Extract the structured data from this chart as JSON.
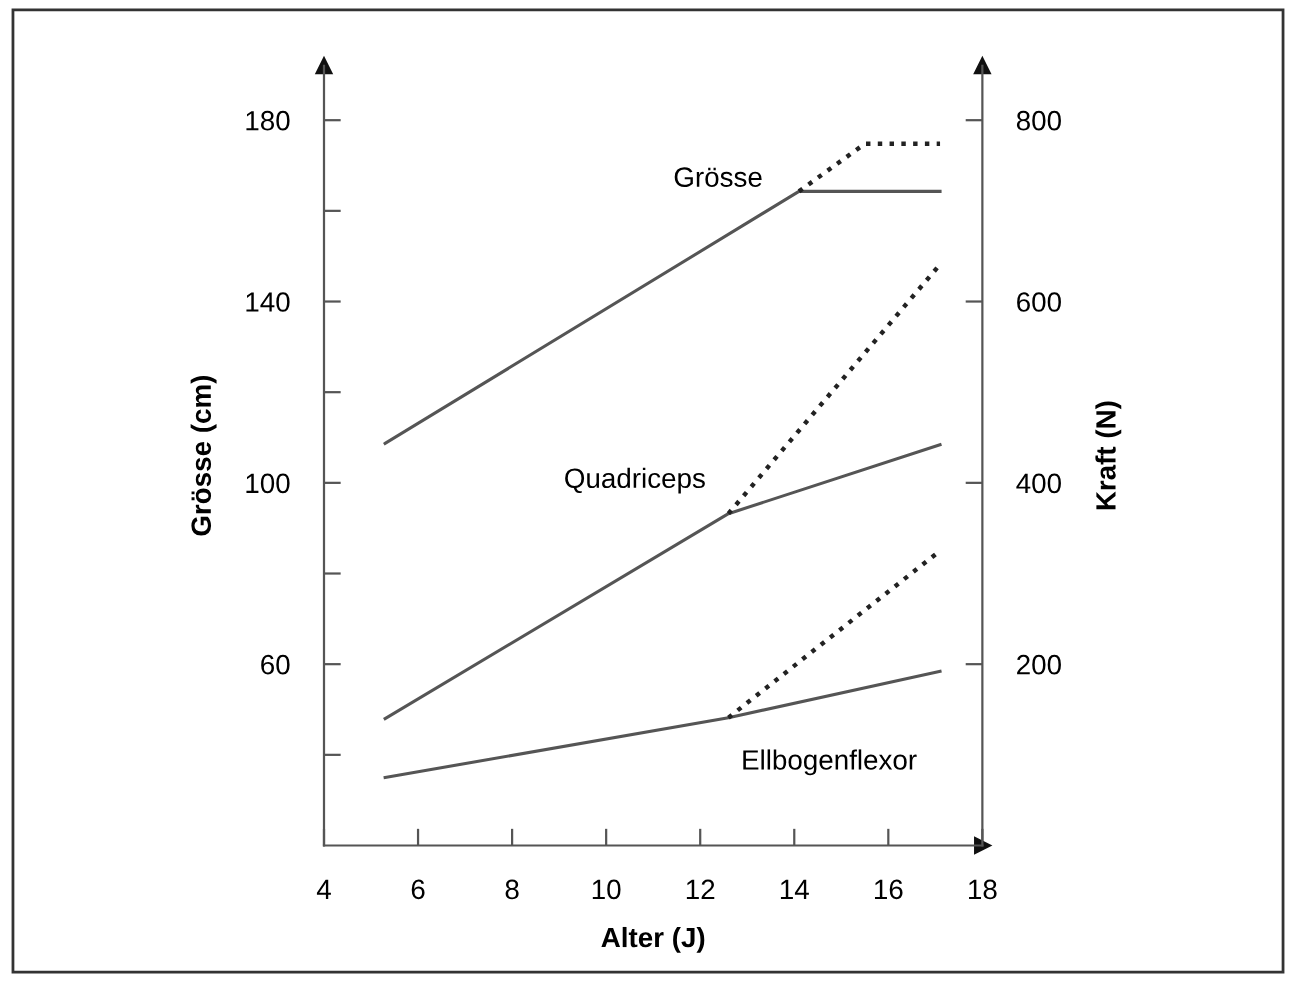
{
  "chart_data": {
    "type": "line",
    "xlabel": "Alter (J)",
    "ylabel": "Grösse (cm)",
    "y2label": "Kraft (N)",
    "xlim": [
      4,
      18
    ],
    "xticks": [
      4,
      6,
      8,
      10,
      12,
      14,
      16,
      18
    ],
    "ylim": [
      20,
      192
    ],
    "yticks": [
      {
        "value": 40,
        "label": null
      },
      60,
      {
        "value": 80,
        "label": null
      },
      100,
      {
        "value": 120,
        "label": null
      },
      140,
      {
        "value": 160,
        "label": null
      },
      180
    ],
    "y2lim": [
      0,
      860
    ],
    "y2ticks": [
      200,
      400,
      600,
      800
    ],
    "grid": false,
    "legend": false,
    "marker": "none",
    "series": [
      {
        "name": "Grösse",
        "color": "#555555",
        "line_style": "solid",
        "x": [
          5.3,
          14.1,
          17.1
        ],
        "values": [
          108.7,
          164.3,
          164.3
        ]
      },
      {
        "color": "#222222",
        "line_style": "dotted",
        "x": [
          14.1,
          15.5,
          17.1
        ],
        "values": [
          164.3,
          174.8,
          174.8
        ]
      },
      {
        "name": "Quadriceps",
        "color": "#555555",
        "line_style": "solid",
        "axis": "y2",
        "x": [
          5.3,
          12.6,
          17.1
        ],
        "values": [
          140,
          366,
          442
        ]
      },
      {
        "color": "#222222",
        "line_style": "dotted",
        "axis": "y2",
        "x": [
          12.6,
          17.1
        ],
        "values": [
          366,
          641
        ]
      },
      {
        "name": "Ellbogenflexor",
        "color": "#555555",
        "line_style": "solid",
        "axis": "y2",
        "x": [
          5.3,
          12.6,
          17.1
        ],
        "values": [
          75,
          141,
          192
        ]
      },
      {
        "color": "#222222",
        "line_style": "dotted",
        "axis": "y2",
        "x": [
          12.6,
          17.1
        ],
        "values": [
          141,
          325
        ]
      }
    ]
  }
}
